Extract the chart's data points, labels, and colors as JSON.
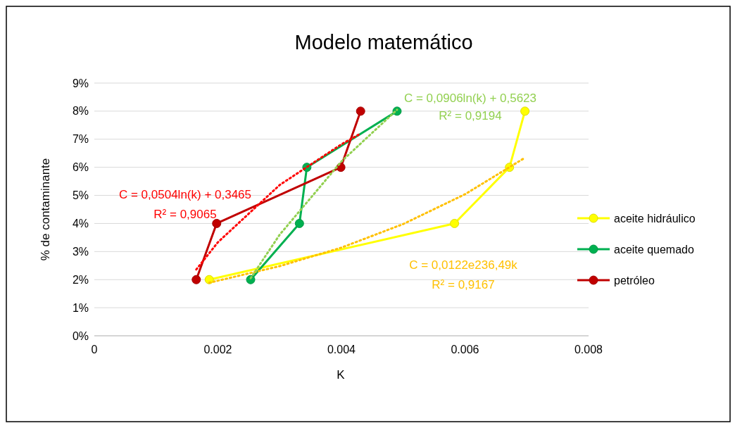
{
  "chart_data": {
    "type": "line",
    "title": "Modelo matemático",
    "xlabel": "K",
    "ylabel": "% de contaminante",
    "xlim": [
      0,
      0.008
    ],
    "xticks": [
      0,
      0.002,
      0.004,
      0.006,
      0.008
    ],
    "ylim": [
      0,
      9
    ],
    "yticks": [
      {
        "value": 0,
        "label": "0%"
      },
      {
        "value": 1,
        "label": "1%"
      },
      {
        "value": 2,
        "label": "2%"
      },
      {
        "value": 3,
        "label": "3%"
      },
      {
        "value": 4,
        "label": "4%"
      },
      {
        "value": 5,
        "label": "5%"
      },
      {
        "value": 6,
        "label": "6%"
      },
      {
        "value": 7,
        "label": "7%"
      },
      {
        "value": 8,
        "label": "8%"
      },
      {
        "value": 9,
        "label": "9%"
      }
    ],
    "grid": "y",
    "legend": "right",
    "marker": "circle",
    "line_style": "solid",
    "series": [
      {
        "name": "aceite hidráulico",
        "color": "#ffff00",
        "x": [
          0.00186,
          0.00583,
          0.00672,
          0.00697
        ],
        "values": [
          2,
          4,
          6,
          8
        ]
      },
      {
        "name": "aceite quemado",
        "color": "#00b050",
        "x": [
          0.00253,
          0.00332,
          0.00344,
          0.0049
        ],
        "values": [
          2,
          4,
          6,
          8
        ]
      },
      {
        "name": "petróleo",
        "color": "#c00000",
        "x": [
          0.00165,
          0.00198,
          0.00399,
          0.00431
        ],
        "values": [
          2,
          4,
          6,
          8
        ]
      },
      {
        "type": "line",
        "color": "#ffc000",
        "marker": "none",
        "line_style": "dotted",
        "x": [
          0.00186,
          0.003,
          0.004,
          0.005,
          0.006,
          0.00697
        ],
        "values": [
          1.89,
          2.48,
          3.14,
          3.98,
          5.04,
          6.34
        ]
      },
      {
        "type": "line",
        "color": "#92d050",
        "marker": "none",
        "line_style": "dotted",
        "x": [
          0.00253,
          0.003,
          0.004,
          0.0049
        ],
        "values": [
          2.05,
          3.6,
          6.21,
          8.05
        ]
      },
      {
        "type": "line",
        "color": "#ff0000",
        "marker": "none",
        "line_style": "dotted",
        "x": [
          0.00165,
          0.002,
          0.003,
          0.004,
          0.00431
        ],
        "values": [
          2.36,
          3.33,
          5.37,
          6.82,
          7.2
        ]
      }
    ],
    "annotations": [
      "C = 0,0122e236,49k",
      "R² = 0,9167",
      "C = 0,0906ln(k) + 0,5623",
      "R² = 0,9194",
      "C = 0,0504ln(k) + 0,3465",
      "R² = 0,9065"
    ]
  }
}
